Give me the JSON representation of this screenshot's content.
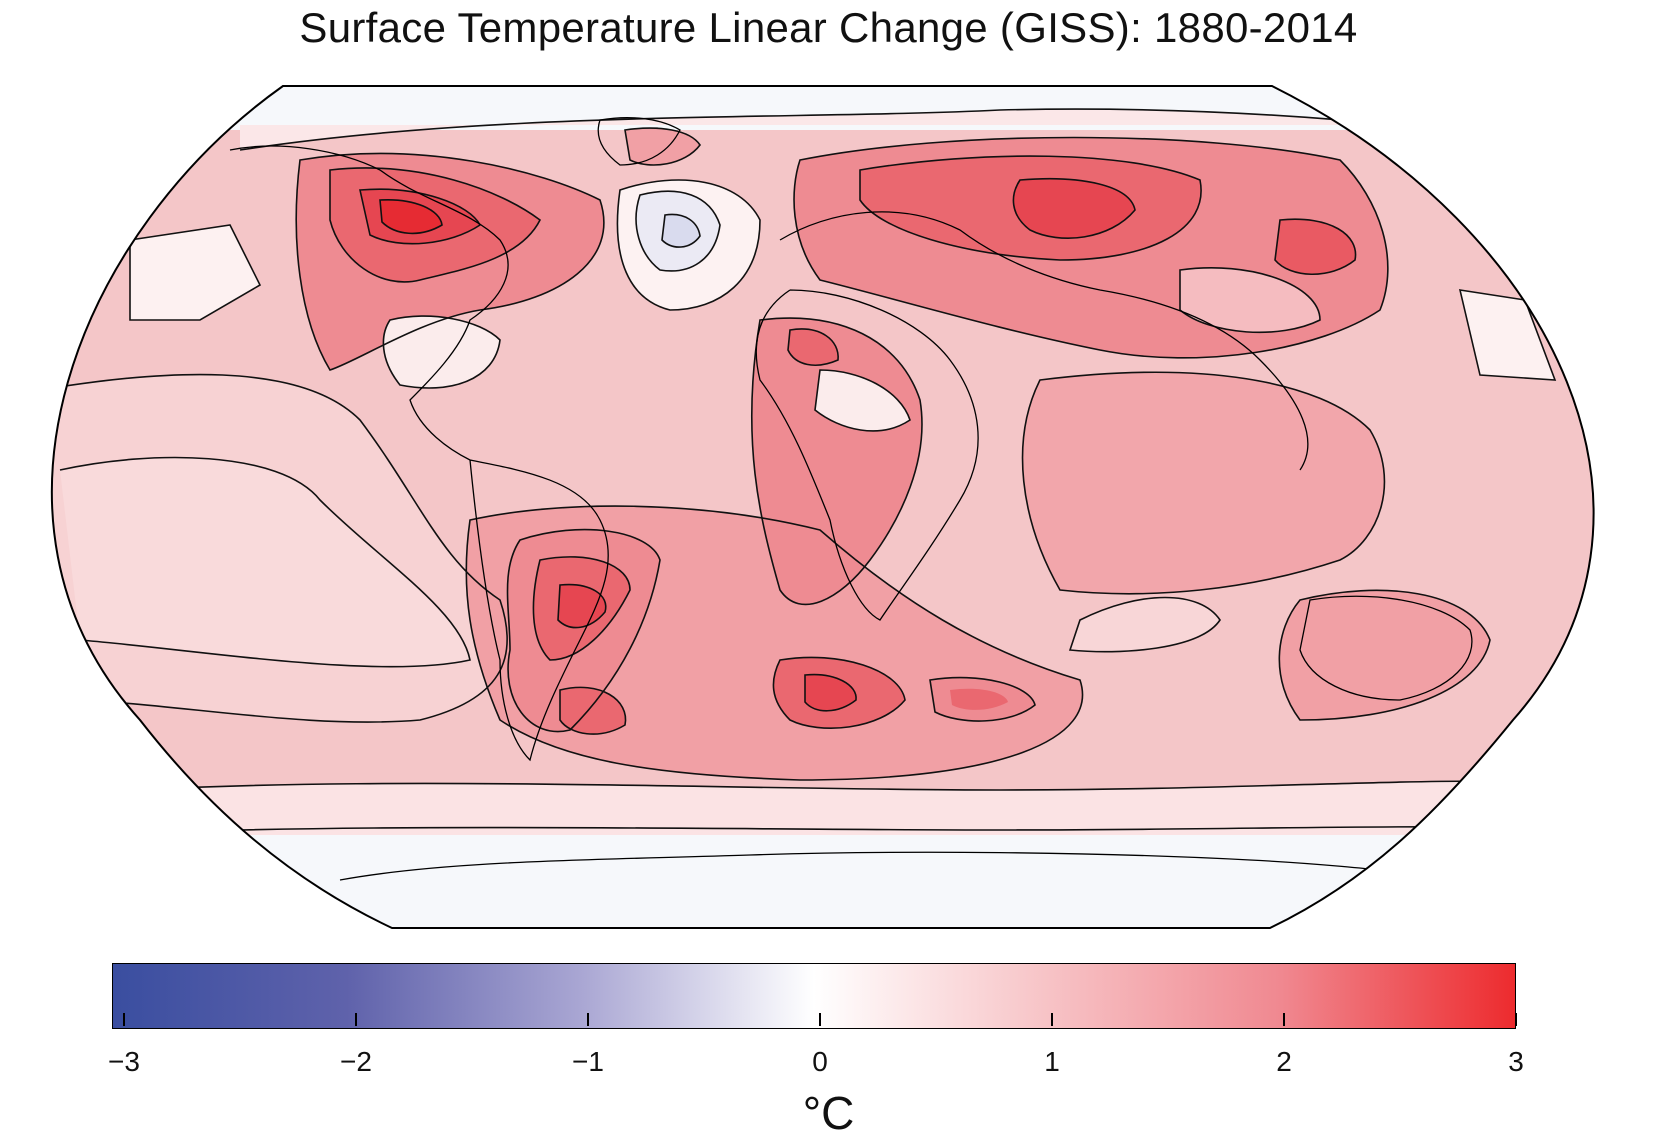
{
  "title": "Surface Temperature Linear Change (GISS):  1880-2014",
  "colorbar": {
    "unit": "°C",
    "ticks": [
      "−3",
      "−2",
      "−1",
      "0",
      "1",
      "2",
      "3"
    ],
    "min": -3,
    "max": 3,
    "stops": [
      "#3a4ea0",
      "#5f62ab",
      "#a9a6d3",
      "#ffffff",
      "#f7c3c6",
      "#f08890",
      "#ed2b2e"
    ]
  },
  "colors": {
    "ocean_fill": "#f4c6c8",
    "polar_fill": "#f6f8fb",
    "contour_line": "#111111"
  }
}
